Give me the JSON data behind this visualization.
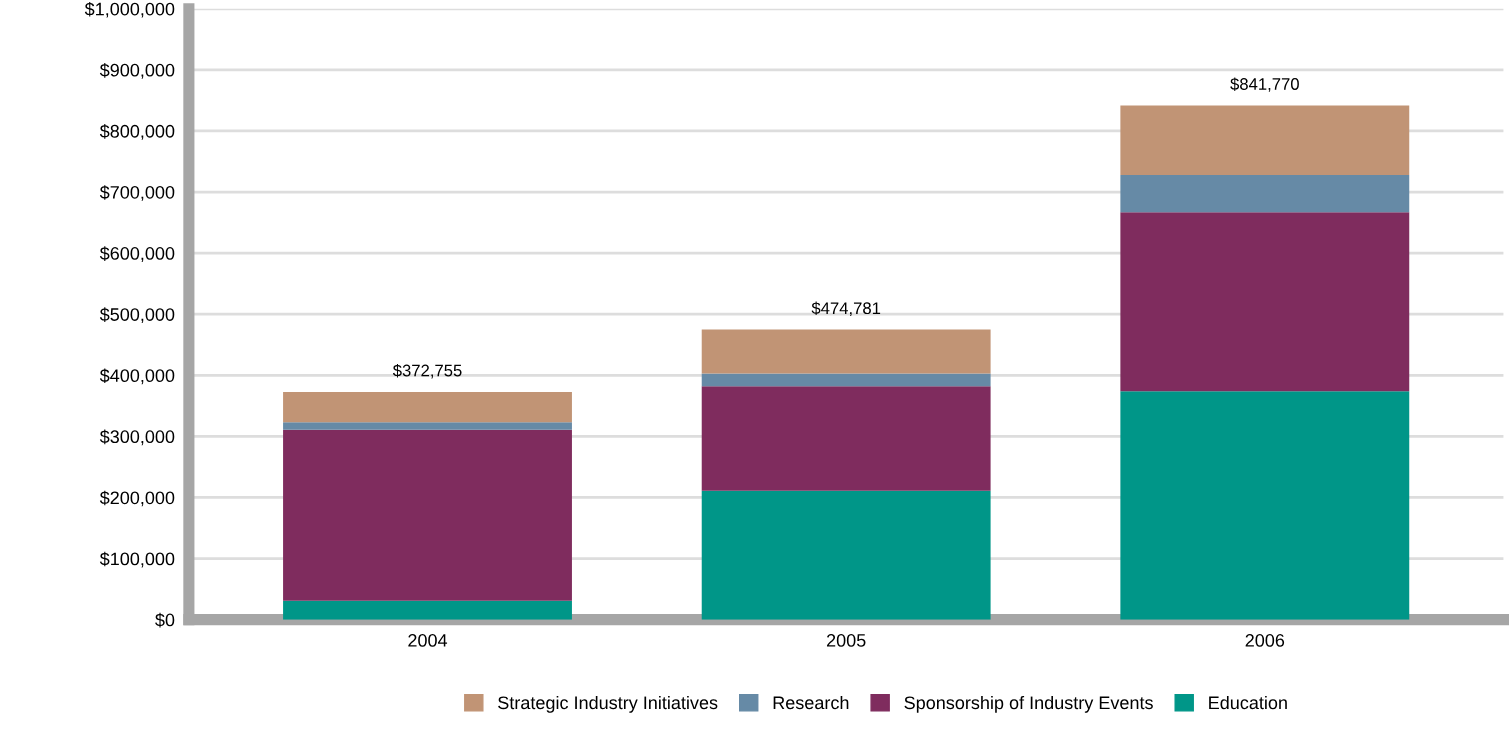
{
  "chart_data": {
    "type": "bar",
    "stacked": true,
    "categories": [
      "2004",
      "2005",
      "2006"
    ],
    "series": [
      {
        "name": "Education",
        "color": "#009688",
        "values": [
          31000,
          211000,
          374000
        ]
      },
      {
        "name": "Sponsorship of Industry Events",
        "color": "#7f2c5e",
        "values": [
          280000,
          171000,
          293000
        ]
      },
      {
        "name": "Research",
        "color": "#668aa6",
        "values": [
          12000,
          21000,
          61000
        ]
      },
      {
        "name": "Strategic Industry Initiatives",
        "color": "#c19475",
        "values": [
          49755,
          71781,
          113770
        ]
      }
    ],
    "totals": [
      "$372,755",
      "$474,781",
      "$841,770"
    ],
    "ylim": [
      0,
      1000000
    ],
    "yticks": [
      {
        "value": 0,
        "label": "$0"
      },
      {
        "value": 100000,
        "label": "$100,000"
      },
      {
        "value": 200000,
        "label": "$200,000"
      },
      {
        "value": 300000,
        "label": "$300,000"
      },
      {
        "value": 400000,
        "label": "$400,000"
      },
      {
        "value": 500000,
        "label": "$500,000"
      },
      {
        "value": 600000,
        "label": "$600,000"
      },
      {
        "value": 700000,
        "label": "$700,000"
      },
      {
        "value": 800000,
        "label": "$800,000"
      },
      {
        "value": 900000,
        "label": "$900,000"
      },
      {
        "value": 1000000,
        "label": "$1,000,000"
      }
    ],
    "grid": "y",
    "legend": "bottom"
  }
}
